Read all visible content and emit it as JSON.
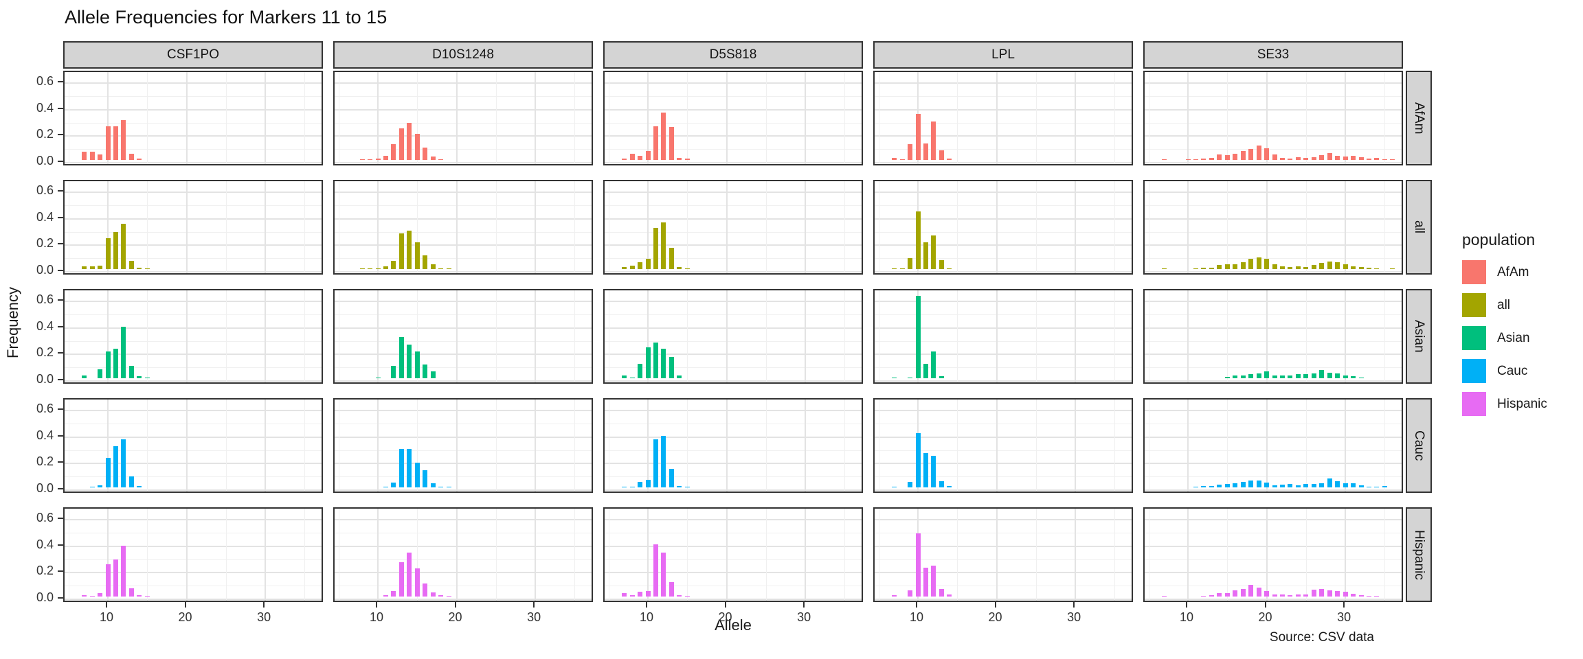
{
  "chart_data": {
    "type": "bar",
    "title": "Allele Frequencies for Markers 11 to 15",
    "xlabel": "Allele",
    "ylabel": "Frequency",
    "caption": "Source: CSV data",
    "facet_columns": [
      "CSF1PO",
      "D10S1248",
      "D5S818",
      "LPL",
      "SE33"
    ],
    "facet_rows": [
      "AfAm",
      "all",
      "Asian",
      "Cauc",
      "Hispanic"
    ],
    "xlim": [
      4.5,
      37.5
    ],
    "ylim": [
      0,
      0.65
    ],
    "grid": "on",
    "x_ticks": [
      {
        "value": 10,
        "label": "10"
      },
      {
        "value": 20,
        "label": "20"
      },
      {
        "value": 30,
        "label": "30"
      }
    ],
    "x_minor_ticks": [
      5,
      15,
      25,
      35
    ],
    "y_ticks": [
      {
        "value": 0.0,
        "label": "0.0"
      },
      {
        "value": 0.2,
        "label": "0.2"
      },
      {
        "value": 0.4,
        "label": "0.4"
      },
      {
        "value": 0.6,
        "label": "0.6"
      }
    ],
    "y_minor_ticks": [
      0.1,
      0.3,
      0.5
    ],
    "legend": {
      "title": "population",
      "position": "right",
      "entries": [
        {
          "label": "AfAm",
          "color": "#F8766D"
        },
        {
          "label": "all",
          "color": "#A3A500"
        },
        {
          "label": "Asian",
          "color": "#00BF7D"
        },
        {
          "label": "Cauc",
          "color": "#00B0F6"
        },
        {
          "label": "Hispanic",
          "color": "#E76BF3"
        }
      ]
    },
    "frequencies": {
      "CSF1PO": {
        "AfAm": [
          [
            7,
            0.06
          ],
          [
            8,
            0.06
          ],
          [
            9,
            0.04
          ],
          [
            10,
            0.25
          ],
          [
            11,
            0.25
          ],
          [
            12,
            0.3
          ],
          [
            13,
            0.047
          ],
          [
            14,
            0.008
          ]
        ],
        "all": [
          [
            7,
            0.02
          ],
          [
            8,
            0.02
          ],
          [
            9,
            0.025
          ],
          [
            10,
            0.23
          ],
          [
            11,
            0.28
          ],
          [
            12,
            0.34
          ],
          [
            13,
            0.06
          ],
          [
            14,
            0.008
          ],
          [
            15,
            0.003
          ]
        ],
        "Asian": [
          [
            7,
            0.018
          ],
          [
            9,
            0.068
          ],
          [
            10,
            0.2
          ],
          [
            11,
            0.22
          ],
          [
            12,
            0.385
          ],
          [
            13,
            0.09
          ],
          [
            14,
            0.012
          ],
          [
            15,
            0.005
          ]
        ],
        "Cauc": [
          [
            8,
            0.005
          ],
          [
            9,
            0.015
          ],
          [
            10,
            0.22
          ],
          [
            11,
            0.31
          ],
          [
            12,
            0.36
          ],
          [
            13,
            0.08
          ],
          [
            14,
            0.01
          ]
        ],
        "Hispanic": [
          [
            7,
            0.011
          ],
          [
            8,
            0.005
          ],
          [
            9,
            0.025
          ],
          [
            10,
            0.24
          ],
          [
            11,
            0.28
          ],
          [
            12,
            0.38
          ],
          [
            13,
            0.06
          ],
          [
            14,
            0.008
          ],
          [
            15,
            0.004
          ]
        ]
      },
      "D10S1248": {
        "AfAm": [
          [
            8,
            0.004
          ],
          [
            9,
            0.004
          ],
          [
            10,
            0.008
          ],
          [
            11,
            0.031
          ],
          [
            12,
            0.12
          ],
          [
            13,
            0.235
          ],
          [
            14,
            0.28
          ],
          [
            15,
            0.195
          ],
          [
            16,
            0.09
          ],
          [
            17,
            0.026
          ],
          [
            18,
            0.006
          ]
        ],
        "all": [
          [
            8,
            0.002
          ],
          [
            9,
            0.003
          ],
          [
            10,
            0.005
          ],
          [
            11,
            0.02
          ],
          [
            12,
            0.06
          ],
          [
            13,
            0.27
          ],
          [
            14,
            0.29
          ],
          [
            15,
            0.2
          ],
          [
            16,
            0.1
          ],
          [
            17,
            0.035
          ],
          [
            18,
            0.006
          ],
          [
            19,
            0.002
          ]
        ],
        "Asian": [
          [
            10,
            0.005
          ],
          [
            12,
            0.09
          ],
          [
            13,
            0.31
          ],
          [
            14,
            0.25
          ],
          [
            15,
            0.2
          ],
          [
            16,
            0.1
          ],
          [
            17,
            0.05
          ]
        ],
        "Cauc": [
          [
            11,
            0.005
          ],
          [
            12,
            0.035
          ],
          [
            13,
            0.29
          ],
          [
            14,
            0.29
          ],
          [
            15,
            0.185
          ],
          [
            16,
            0.13
          ],
          [
            17,
            0.03
          ],
          [
            18,
            0.005
          ],
          [
            19,
            0.002
          ]
        ],
        "Hispanic": [
          [
            11,
            0.01
          ],
          [
            12,
            0.04
          ],
          [
            13,
            0.26
          ],
          [
            14,
            0.33
          ],
          [
            15,
            0.21
          ],
          [
            16,
            0.095
          ],
          [
            17,
            0.03
          ],
          [
            18,
            0.01
          ],
          [
            19,
            0.004
          ]
        ]
      },
      "D5S818": {
        "AfAm": [
          [
            7,
            0.01
          ],
          [
            8,
            0.045
          ],
          [
            9,
            0.03
          ],
          [
            10,
            0.065
          ],
          [
            11,
            0.25
          ],
          [
            12,
            0.355
          ],
          [
            13,
            0.245
          ],
          [
            14,
            0.015
          ],
          [
            15,
            0.008
          ]
        ],
        "all": [
          [
            7,
            0.014
          ],
          [
            8,
            0.026
          ],
          [
            9,
            0.049
          ],
          [
            10,
            0.078
          ],
          [
            11,
            0.31
          ],
          [
            12,
            0.35
          ],
          [
            13,
            0.157
          ],
          [
            14,
            0.014
          ],
          [
            15,
            0.005
          ]
        ],
        "Asian": [
          [
            7,
            0.02
          ],
          [
            8,
            0.005
          ],
          [
            9,
            0.105
          ],
          [
            10,
            0.23
          ],
          [
            11,
            0.27
          ],
          [
            12,
            0.22
          ],
          [
            13,
            0.16
          ],
          [
            14,
            0.02
          ]
        ],
        "Cauc": [
          [
            7,
            0.003
          ],
          [
            8,
            0.005
          ],
          [
            9,
            0.04
          ],
          [
            10,
            0.055
          ],
          [
            11,
            0.36
          ],
          [
            12,
            0.385
          ],
          [
            13,
            0.14
          ],
          [
            14,
            0.007
          ],
          [
            15,
            0.003
          ]
        ],
        "Hispanic": [
          [
            7,
            0.025
          ],
          [
            8,
            0.01
          ],
          [
            9,
            0.035
          ],
          [
            10,
            0.04
          ],
          [
            11,
            0.39
          ],
          [
            12,
            0.33
          ],
          [
            13,
            0.11
          ],
          [
            14,
            0.01
          ],
          [
            15,
            0.005
          ]
        ]
      },
      "LPL": {
        "AfAm": [
          [
            7,
            0.013
          ],
          [
            8,
            0.005
          ],
          [
            9,
            0.12
          ],
          [
            10,
            0.345
          ],
          [
            11,
            0.125
          ],
          [
            12,
            0.29
          ],
          [
            13,
            0.07
          ],
          [
            14,
            0.01
          ]
        ],
        "all": [
          [
            7,
            0.006
          ],
          [
            8,
            0.002
          ],
          [
            9,
            0.08
          ],
          [
            10,
            0.435
          ],
          [
            11,
            0.2
          ],
          [
            12,
            0.25
          ],
          [
            13,
            0.065
          ],
          [
            14,
            0.006
          ]
        ],
        "Asian": [
          [
            7,
            0.004
          ],
          [
            9,
            0.005
          ],
          [
            10,
            0.62
          ],
          [
            11,
            0.11
          ],
          [
            12,
            0.2
          ],
          [
            13,
            0.015
          ]
        ],
        "Cauc": [
          [
            7,
            0.003
          ],
          [
            9,
            0.04
          ],
          [
            10,
            0.41
          ],
          [
            11,
            0.26
          ],
          [
            12,
            0.235
          ],
          [
            13,
            0.045
          ],
          [
            14,
            0.008
          ]
        ],
        "Hispanic": [
          [
            7,
            0.01
          ],
          [
            9,
            0.045
          ],
          [
            10,
            0.475
          ],
          [
            11,
            0.215
          ],
          [
            12,
            0.23
          ],
          [
            13,
            0.055
          ],
          [
            14,
            0.012
          ]
        ]
      },
      "SE33": {
        "AfAm": [
          [
            7,
            0.003
          ],
          [
            10,
            0.004
          ],
          [
            11,
            0.005
          ],
          [
            12,
            0.007
          ],
          [
            13,
            0.016
          ],
          [
            14,
            0.042
          ],
          [
            15,
            0.036
          ],
          [
            16,
            0.043
          ],
          [
            17,
            0.064
          ],
          [
            18,
            0.082
          ],
          [
            19,
            0.105
          ],
          [
            20,
            0.089
          ],
          [
            21,
            0.039
          ],
          [
            22,
            0.014
          ],
          [
            23,
            0.009
          ],
          [
            24,
            0.018
          ],
          [
            25,
            0.013
          ],
          [
            26,
            0.019
          ],
          [
            27,
            0.034
          ],
          [
            28,
            0.051
          ],
          [
            29,
            0.029
          ],
          [
            30,
            0.027
          ],
          [
            31,
            0.032
          ],
          [
            32,
            0.018
          ],
          [
            33,
            0.009
          ],
          [
            34,
            0.013
          ],
          [
            35,
            0.004
          ],
          [
            36,
            0.003
          ]
        ],
        "all": [
          [
            7,
            0.002
          ],
          [
            11,
            0.004
          ],
          [
            12,
            0.007
          ],
          [
            13,
            0.011
          ],
          [
            14,
            0.03
          ],
          [
            15,
            0.033
          ],
          [
            16,
            0.036
          ],
          [
            17,
            0.052
          ],
          [
            18,
            0.078
          ],
          [
            19,
            0.088
          ],
          [
            20,
            0.075
          ],
          [
            21,
            0.035
          ],
          [
            22,
            0.02
          ],
          [
            23,
            0.016
          ],
          [
            24,
            0.02
          ],
          [
            25,
            0.016
          ],
          [
            26,
            0.03
          ],
          [
            27,
            0.046
          ],
          [
            28,
            0.056
          ],
          [
            29,
            0.048
          ],
          [
            30,
            0.035
          ],
          [
            31,
            0.022
          ],
          [
            32,
            0.012
          ],
          [
            33,
            0.008
          ],
          [
            34,
            0.005
          ],
          [
            36,
            0.002
          ]
        ],
        "Asian": [
          [
            15,
            0.01
          ],
          [
            16,
            0.022
          ],
          [
            17,
            0.022
          ],
          [
            18,
            0.032
          ],
          [
            19,
            0.035
          ],
          [
            20,
            0.053
          ],
          [
            21,
            0.022
          ],
          [
            22,
            0.017
          ],
          [
            23,
            0.022
          ],
          [
            24,
            0.032
          ],
          [
            25,
            0.032
          ],
          [
            26,
            0.035
          ],
          [
            27,
            0.062
          ],
          [
            28,
            0.042
          ],
          [
            29,
            0.036
          ],
          [
            30,
            0.02
          ],
          [
            31,
            0.014
          ],
          [
            32,
            0.006
          ]
        ],
        "Cauc": [
          [
            11,
            0.003
          ],
          [
            12,
            0.008
          ],
          [
            13,
            0.011
          ],
          [
            14,
            0.02
          ],
          [
            15,
            0.026
          ],
          [
            16,
            0.031
          ],
          [
            17,
            0.04
          ],
          [
            18,
            0.051
          ],
          [
            19,
            0.051
          ],
          [
            20,
            0.036
          ],
          [
            21,
            0.016
          ],
          [
            22,
            0.021
          ],
          [
            23,
            0.026
          ],
          [
            24,
            0.016
          ],
          [
            25,
            0.026
          ],
          [
            26,
            0.026
          ],
          [
            27,
            0.031
          ],
          [
            28,
            0.065
          ],
          [
            29,
            0.045
          ],
          [
            30,
            0.03
          ],
          [
            31,
            0.03
          ],
          [
            32,
            0.012
          ],
          [
            33,
            0.005
          ],
          [
            34,
            0.004
          ],
          [
            35,
            0.008
          ]
        ],
        "Hispanic": [
          [
            7,
            0.004
          ],
          [
            12,
            0.006
          ],
          [
            13,
            0.009
          ],
          [
            14,
            0.026
          ],
          [
            15,
            0.026
          ],
          [
            16,
            0.047
          ],
          [
            17,
            0.057
          ],
          [
            18,
            0.089
          ],
          [
            19,
            0.068
          ],
          [
            20,
            0.042
          ],
          [
            21,
            0.016
          ],
          [
            22,
            0.016
          ],
          [
            23,
            0.011
          ],
          [
            24,
            0.013
          ],
          [
            25,
            0.013
          ],
          [
            26,
            0.052
          ],
          [
            27,
            0.057
          ],
          [
            28,
            0.047
          ],
          [
            29,
            0.042
          ],
          [
            30,
            0.037
          ],
          [
            31,
            0.021
          ],
          [
            32,
            0.011
          ],
          [
            33,
            0.006
          ],
          [
            34,
            0.004
          ]
        ]
      }
    }
  }
}
